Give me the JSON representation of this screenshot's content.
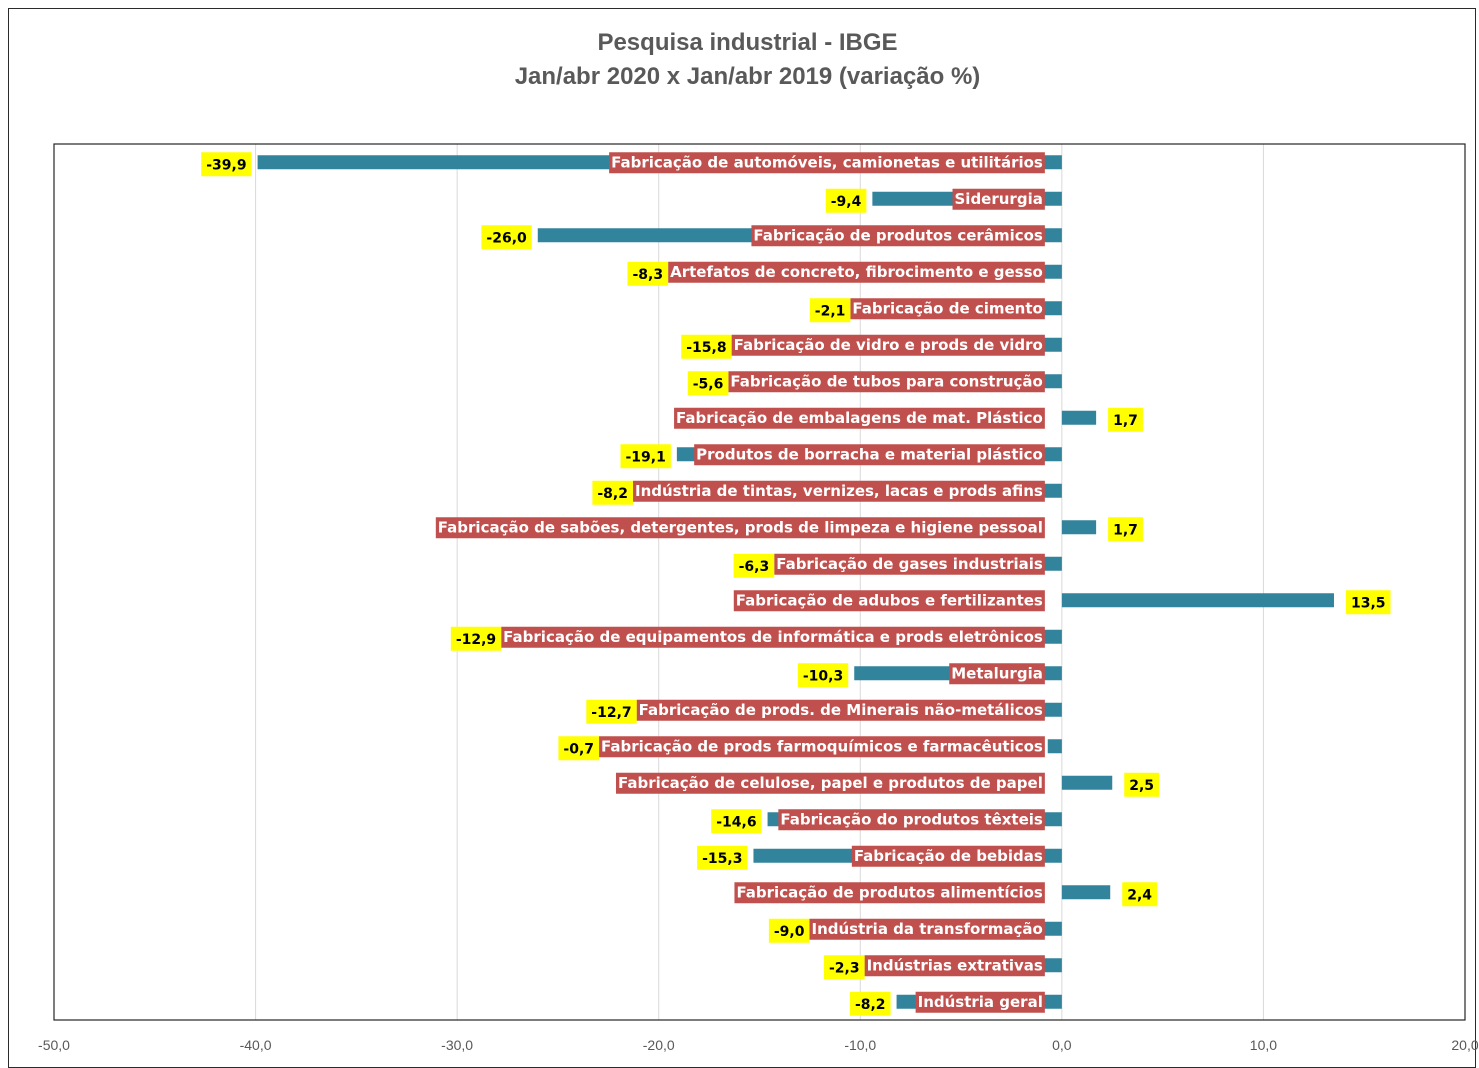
{
  "chart_data": {
    "type": "bar",
    "orientation": "horizontal",
    "title": "Pesquisa industrial - IBGE",
    "subtitle": "Jan/abr 2020 x Jan/abr 2019 (variação %)",
    "xlim": [
      -50,
      20
    ],
    "xticks": [
      "-50,0",
      "-40,0",
      "-30,0",
      "-20,0",
      "-10,0",
      "0,0",
      "10,0",
      "20,0"
    ],
    "grid": true,
    "categories": [
      "Fabricação de automóveis, camionetas e utilitários",
      "Siderurgia",
      "Fabricação de produtos cerâmicos",
      "Artefatos de concreto, fibrocimento e gesso",
      "Fabricação de cimento",
      "Fabricação de vidro e prods de vidro",
      "Fabricação de tubos para construção",
      "Fabricação de embalagens de mat. Plástico",
      "Produtos de borracha e material plástico",
      "Indústria de tintas, vernizes, lacas e prods afins",
      "Fabricação de sabões, detergentes, prods de limpeza e higiene pessoal",
      "Fabricação de gases industriais",
      "Fabricação de adubos e fertilizantes",
      "Fabricação de equipamentos de informática e prods eletrônicos",
      "Metalurgia",
      "Fabricação de prods. de Minerais não-metálicos",
      "Fabricação de prods farmoquímicos e farmacêuticos",
      "Fabricação de celulose, papel e produtos de papel",
      "Fabricação do produtos têxteis",
      "Fabricação de bebidas",
      "Fabricação de produtos alimentícios",
      "Indústria da transformação",
      "Indústrias extrativas",
      "Indústria geral"
    ],
    "values": [
      -39.9,
      -9.4,
      -26.0,
      -8.3,
      -2.1,
      -15.8,
      -5.6,
      1.7,
      -19.1,
      -8.2,
      1.7,
      -6.3,
      13.5,
      -12.9,
      -10.3,
      -12.7,
      -0.7,
      2.5,
      -14.6,
      -15.3,
      2.4,
      -9.0,
      -2.3,
      -8.2
    ],
    "value_labels": [
      "-39,9",
      "-9,4",
      "-26,0",
      "-8,3",
      "-2,1",
      "-15,8",
      "-5,6",
      "1,7",
      "-19,1",
      "-8,2",
      "1,7",
      "-6,3",
      "13,5",
      "-12,9",
      "-10,3",
      "-12,7",
      "-0,7",
      "2,5",
      "-14,6",
      "-15,3",
      "2,4",
      "-9,0",
      "-2,3",
      "-8,2"
    ],
    "colors": {
      "bar": "#31849b",
      "category_label_bg": "#c0504d",
      "value_label_bg": "#ffff00",
      "grid": "#d9d9d9",
      "axis_text": "#595959"
    }
  }
}
